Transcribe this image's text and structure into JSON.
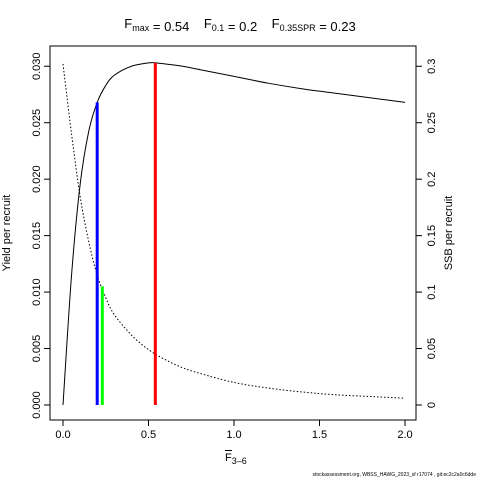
{
  "chart_data": {
    "type": "line",
    "title_parts": [
      {
        "main": "F",
        "sub": "max",
        "value": "= 0.54"
      },
      {
        "main": "F",
        "sub": "0.1",
        "value": "= 0.2"
      },
      {
        "main": "F",
        "sub": "0.35SPR",
        "value": "= 0.23"
      }
    ],
    "xlabel": {
      "main": "F",
      "sub": "3–6"
    },
    "ylabel_left": "Yield per recruit",
    "ylabel_right": "SSB per recruit",
    "xlim": [
      0,
      2
    ],
    "ylim_left": [
      0,
      0.0305
    ],
    "ylim_right": [
      0,
      0.305
    ],
    "x_ticks": [
      0,
      0.5,
      1,
      1.5,
      2
    ],
    "x_tick_labels": [
      "0.0",
      "0.5",
      "1.0",
      "1.5",
      "2.0"
    ],
    "y_left_ticks": [
      0,
      0.005,
      0.01,
      0.015,
      0.02,
      0.025,
      0.03
    ],
    "y_left_tick_labels": [
      "0.000",
      "0.005",
      "0.010",
      "0.015",
      "0.020",
      "0.025",
      "0.030"
    ],
    "y_right_ticks": [
      0,
      0.05,
      0.1,
      0.15,
      0.2,
      0.25,
      0.3
    ],
    "y_right_tick_labels": [
      "0",
      "0.05",
      "0.1",
      "0.15",
      "0.2",
      "0.25",
      "0.3"
    ],
    "series": [
      {
        "axis": "left",
        "style": "solid",
        "color": "#000000",
        "x": [
          0,
          0.05,
          0.1,
          0.15,
          0.2,
          0.25,
          0.3,
          0.4,
          0.5,
          0.54,
          0.6,
          0.7,
          0.8,
          0.9,
          1.0,
          1.2,
          1.4,
          1.6,
          1.8,
          2.0
        ],
        "y": [
          0,
          0.0115,
          0.0195,
          0.0242,
          0.0268,
          0.0283,
          0.0292,
          0.03,
          0.0303,
          0.0303,
          0.0302,
          0.03,
          0.0297,
          0.0294,
          0.0291,
          0.0285,
          0.028,
          0.0276,
          0.0272,
          0.0268
        ]
      },
      {
        "axis": "right",
        "style": "dotted",
        "color": "#000000",
        "x": [
          0,
          0.05,
          0.1,
          0.15,
          0.2,
          0.25,
          0.3,
          0.4,
          0.5,
          0.6,
          0.7,
          0.8,
          1.0,
          1.2,
          1.4,
          1.6,
          1.8,
          2.0
        ],
        "y": [
          0.302,
          0.24,
          0.185,
          0.145,
          0.115,
          0.095,
          0.08,
          0.062,
          0.049,
          0.04,
          0.033,
          0.028,
          0.02,
          0.015,
          0.0115,
          0.009,
          0.0075,
          0.006
        ]
      }
    ],
    "reference_lines": [
      {
        "x": 0.2,
        "y_top": 0.0268,
        "axis": "left",
        "color": "#0000ff"
      },
      {
        "x": 0.23,
        "y_top": 0.0105,
        "axis": "left",
        "color": "#00ff00"
      },
      {
        "x": 0.54,
        "y_top": 0.0303,
        "axis": "left",
        "color": "#ff0000"
      }
    ],
    "grid": false,
    "legend": "none",
    "footer_text": "stockassessment.org, WBSS_HAWG_2023_sf r17074 , git:ec2c2a0c6dde"
  }
}
